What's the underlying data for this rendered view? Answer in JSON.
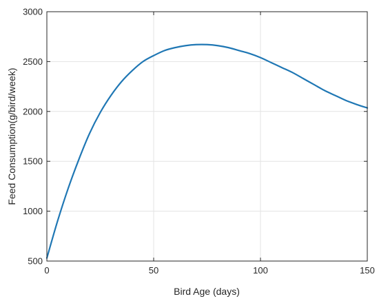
{
  "chart_data": {
    "type": "line",
    "xlabel": "Bird Age (days)",
    "ylabel": "Feed Consumption(g/bird/week)",
    "xlim": [
      0,
      150
    ],
    "ylim": [
      500,
      3000
    ],
    "xticks": [
      0,
      50,
      100,
      150
    ],
    "yticks": [
      500,
      1000,
      1500,
      2000,
      2500,
      3000
    ],
    "xtick_labels": [
      "0",
      "50",
      "100",
      "150"
    ],
    "ytick_labels": [
      "500",
      "1000",
      "1500",
      "2000",
      "2500",
      "3000"
    ],
    "grid": true,
    "series": [
      {
        "color": "#1f77b4",
        "x": [
          0,
          5,
          10,
          15,
          20,
          25,
          30,
          35,
          40,
          45,
          50,
          55,
          60,
          65,
          70,
          75,
          80,
          85,
          90,
          95,
          100,
          105,
          110,
          115,
          120,
          125,
          130,
          135,
          140,
          145,
          150
        ],
        "y": [
          530,
          900,
          1230,
          1520,
          1780,
          1990,
          2160,
          2300,
          2410,
          2500,
          2560,
          2610,
          2640,
          2660,
          2670,
          2670,
          2660,
          2640,
          2610,
          2580,
          2540,
          2490,
          2440,
          2390,
          2330,
          2270,
          2210,
          2160,
          2110,
          2070,
          2035
        ]
      }
    ]
  }
}
